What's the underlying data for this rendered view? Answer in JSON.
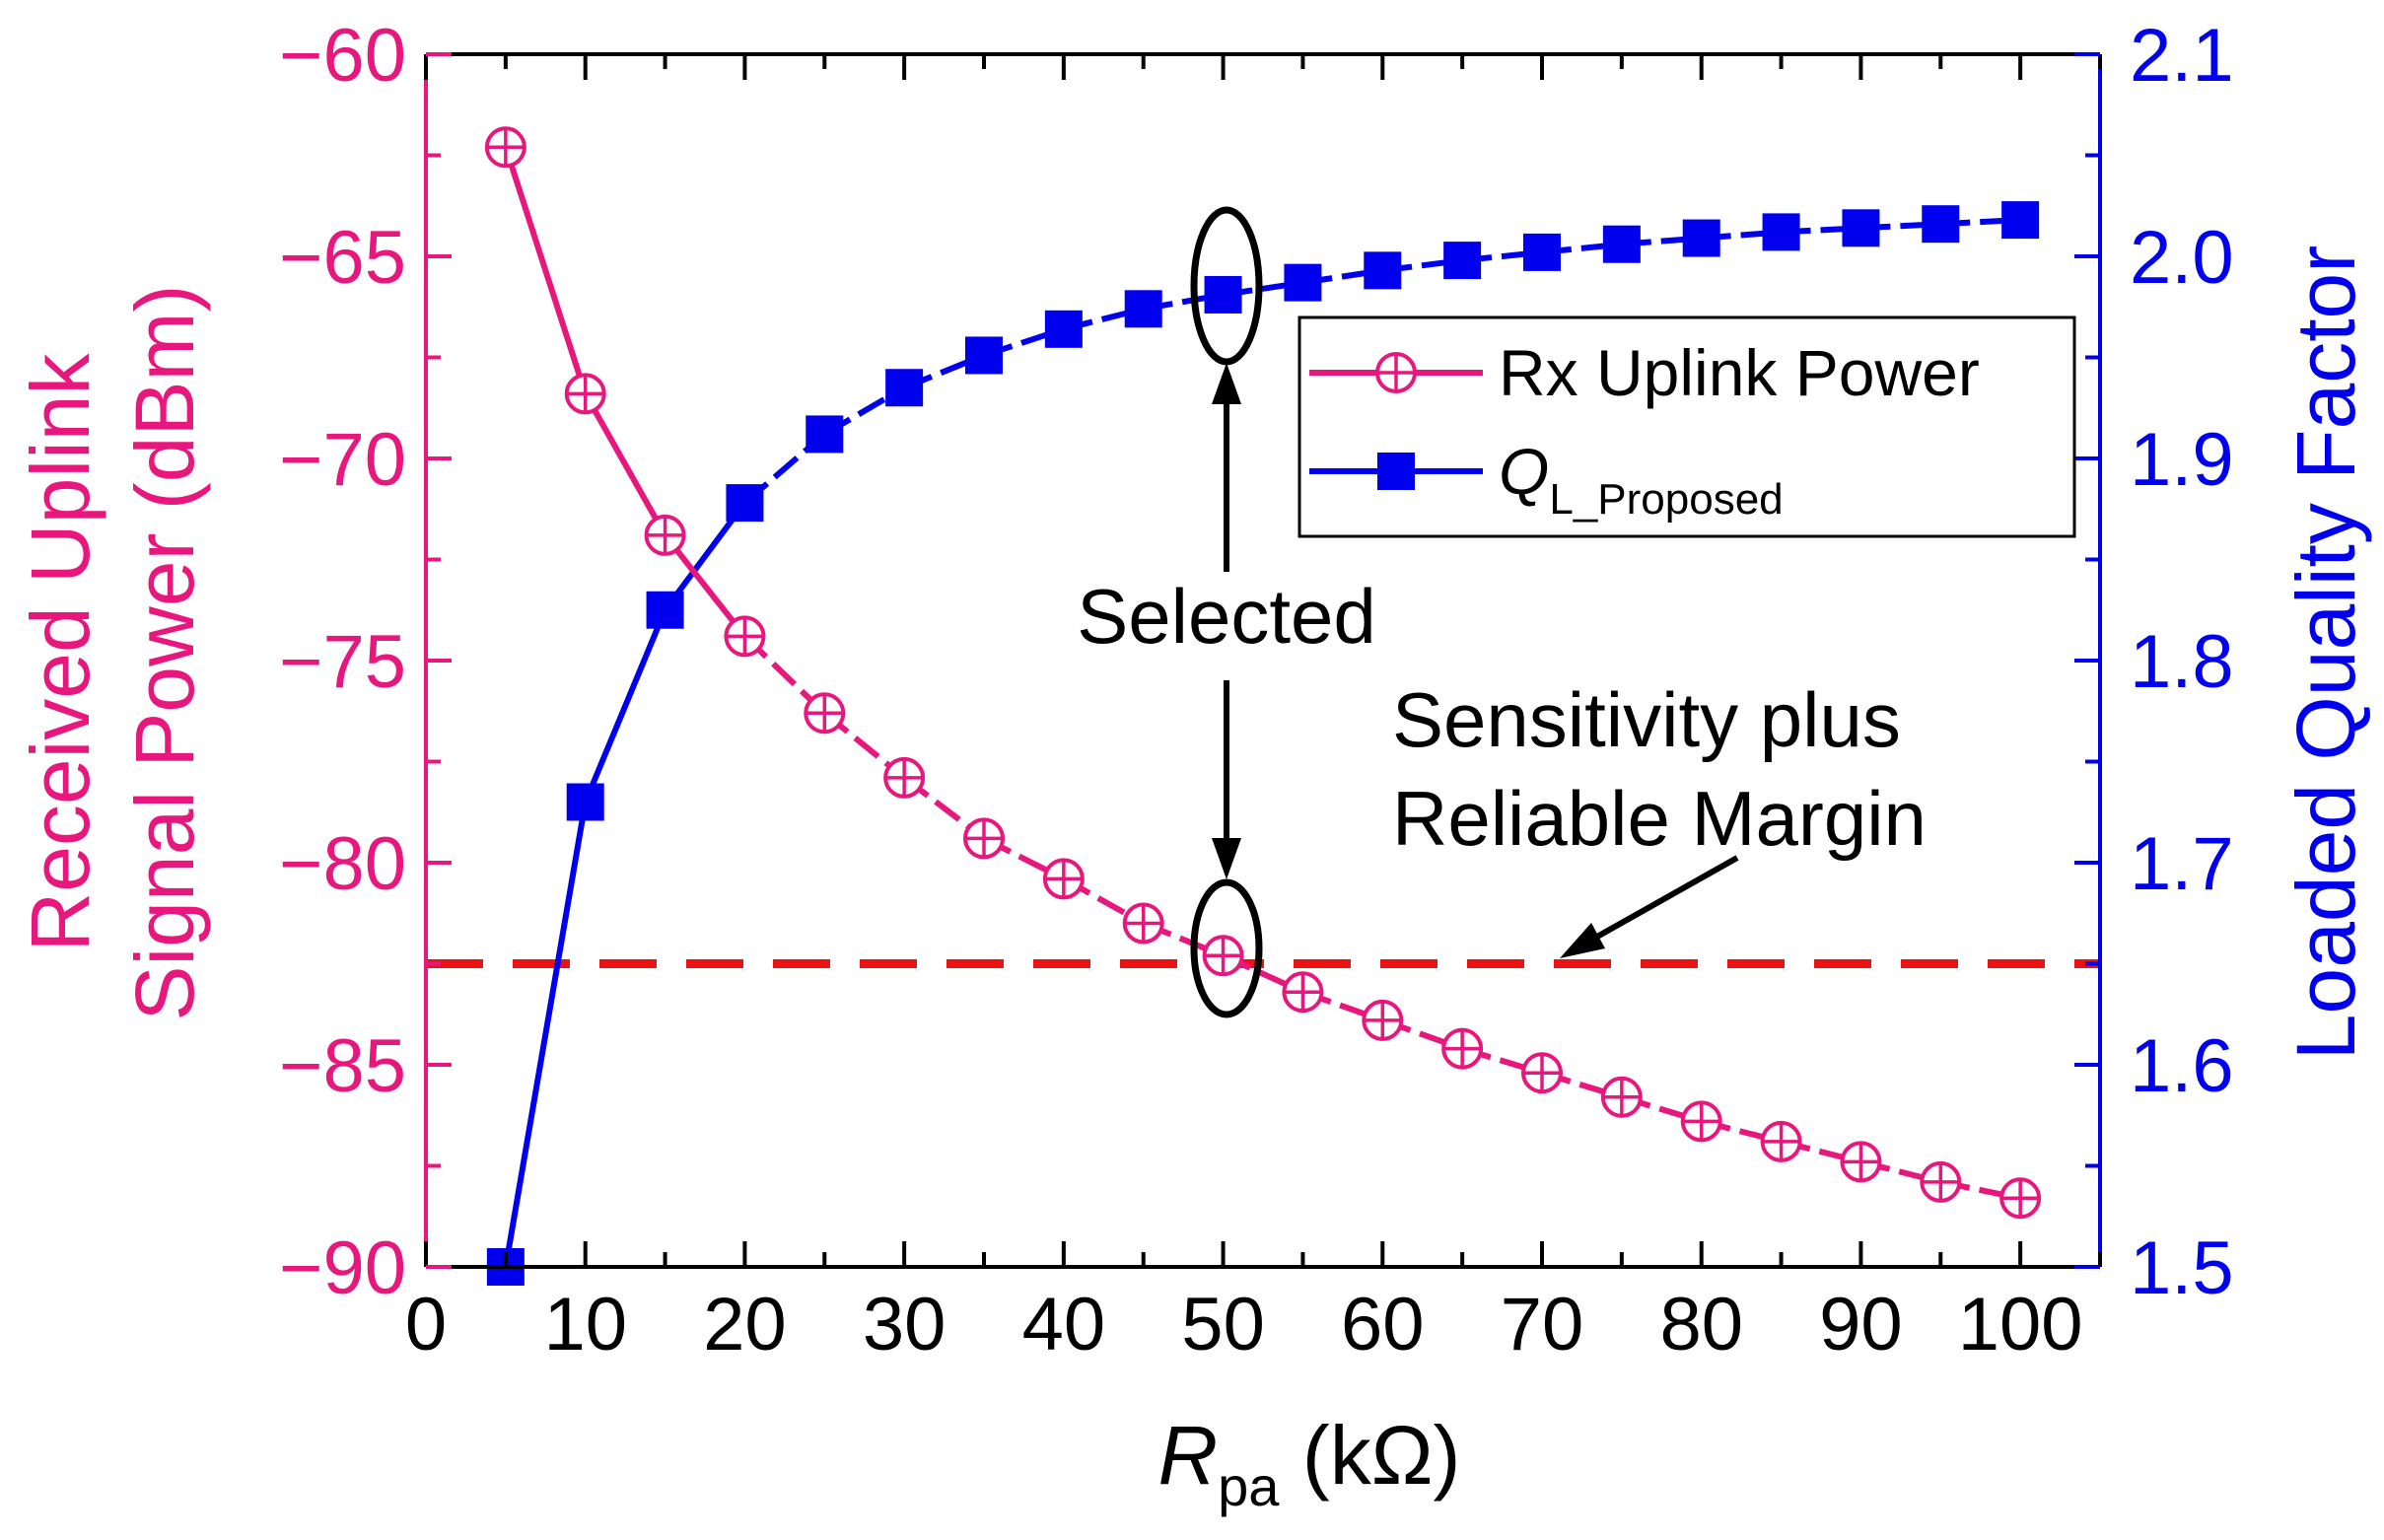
{
  "chart_data": {
    "type": "line",
    "title": "",
    "x": [
      5,
      10,
      15,
      20,
      25,
      30,
      35,
      40,
      45,
      50,
      55,
      60,
      65,
      70,
      75,
      80,
      85,
      90,
      95,
      100
    ],
    "xlim": [
      0,
      105
    ],
    "xticks": [
      "0",
      "10",
      "20",
      "30",
      "40",
      "50",
      "60",
      "70",
      "80",
      "90",
      "100"
    ],
    "xlabel": {
      "main": "R",
      "sub": "pa",
      "unit": " (kΩ)"
    },
    "ylabel_left": [
      "Received Uplink",
      "Signal Power (dBm)"
    ],
    "ylabel_right": "Loaded Quality Factor",
    "ylim_left": [
      -90,
      -60
    ],
    "ylim_right": [
      1.5,
      2.1
    ],
    "yticks_left": [
      "−60",
      "−65",
      "−70",
      "−75",
      "−80",
      "−85",
      "−90"
    ],
    "yticks_right": [
      "2.1",
      "2.0",
      "1.9",
      "1.8",
      "1.7",
      "1.6",
      "1.5"
    ],
    "series": [
      {
        "name": "Rx Uplink Power",
        "axis": "left",
        "color": "#e8177d",
        "marker": "circle-plus",
        "values": [
          -62.3,
          -68.4,
          -71.9,
          -74.4,
          -76.3,
          -77.9,
          -79.4,
          -80.4,
          -81.5,
          -82.3,
          -83.2,
          -83.9,
          -84.6,
          -85.2,
          -85.8,
          -86.4,
          -86.9,
          -87.4,
          -87.9,
          -88.3
        ]
      },
      {
        "name": "Q",
        "name_sub": "L_Proposed",
        "axis": "right",
        "color": "#0000ee",
        "marker": "square",
        "values": [
          1.5,
          1.73,
          1.825,
          1.878,
          1.912,
          1.935,
          1.951,
          1.964,
          1.974,
          1.981,
          1.987,
          1.993,
          1.998,
          2.002,
          2.006,
          2.009,
          2.012,
          2.014,
          2.016,
          2.018
        ]
      }
    ],
    "threshold": {
      "axis": "left",
      "value": -82.5,
      "color": "#ee1111",
      "style": "dashed"
    },
    "annotations": {
      "selected": "Selected",
      "selected_x": 50,
      "sensitivity_line1": "Sensitivity plus",
      "sensitivity_line2": "Reliable Margin"
    },
    "legend": {
      "position": "top-right",
      "frame": true
    }
  }
}
